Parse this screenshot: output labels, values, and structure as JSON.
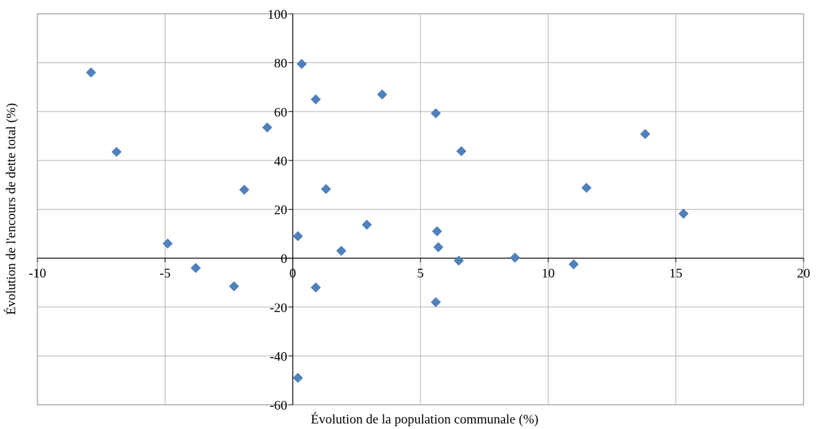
{
  "chart_data": {
    "type": "scatter",
    "title": "",
    "xlabel": "Évolution de la population communale (%)",
    "ylabel": "Évolution de l'encours de dette  total (%)",
    "xlim": [
      -10,
      20
    ],
    "ylim": [
      -60,
      100
    ],
    "xticks": [
      -10,
      -5,
      0,
      5,
      10,
      15,
      20
    ],
    "yticks": [
      -60,
      -40,
      -20,
      0,
      20,
      40,
      60,
      80,
      100
    ],
    "grid": true,
    "legend": "none",
    "marker": "diamond",
    "marker_color": "#4F81BD",
    "series": [
      {
        "points": [
          {
            "x": -7.9,
            "y": 76
          },
          {
            "x": -6.9,
            "y": 43.5
          },
          {
            "x": -4.9,
            "y": 6
          },
          {
            "x": -3.8,
            "y": -4
          },
          {
            "x": -2.3,
            "y": -11.5
          },
          {
            "x": -1.9,
            "y": 28
          },
          {
            "x": -1.0,
            "y": 53.5
          },
          {
            "x": 0.2,
            "y": 9
          },
          {
            "x": 0.2,
            "y": -49
          },
          {
            "x": 0.35,
            "y": 79.5
          },
          {
            "x": 0.9,
            "y": 65
          },
          {
            "x": 0.9,
            "y": -12
          },
          {
            "x": 1.3,
            "y": 28.3
          },
          {
            "x": 1.9,
            "y": 3
          },
          {
            "x": 2.9,
            "y": 13.7
          },
          {
            "x": 3.5,
            "y": 67
          },
          {
            "x": 5.6,
            "y": 59.3
          },
          {
            "x": 5.65,
            "y": 11
          },
          {
            "x": 5.7,
            "y": 4.5
          },
          {
            "x": 5.6,
            "y": -18
          },
          {
            "x": 6.5,
            "y": -1
          },
          {
            "x": 6.6,
            "y": 43.8
          },
          {
            "x": 8.7,
            "y": 0.2
          },
          {
            "x": 11.0,
            "y": -2.5
          },
          {
            "x": 11.5,
            "y": 28.8
          },
          {
            "x": 13.8,
            "y": 50.8
          },
          {
            "x": 15.3,
            "y": 18.2
          }
        ]
      }
    ]
  }
}
